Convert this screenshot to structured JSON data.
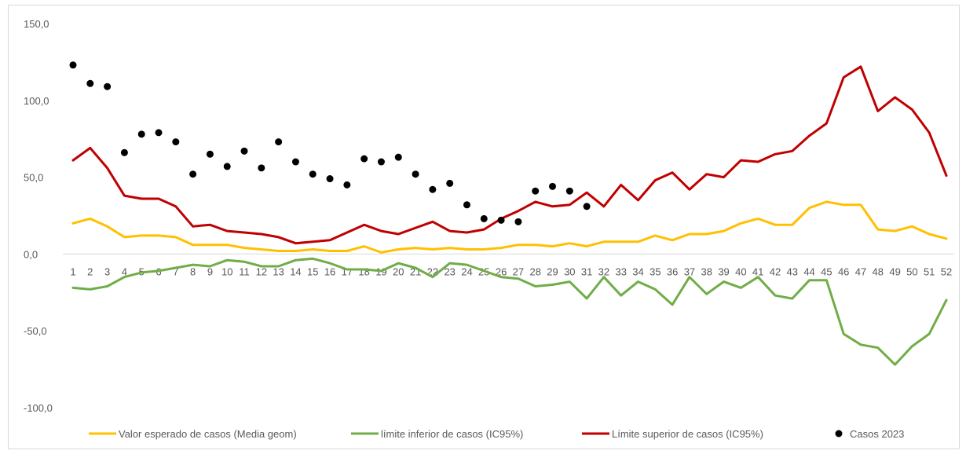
{
  "chart_data": {
    "type": "line",
    "title": "",
    "xlabel": "",
    "ylabel": "",
    "ylim": [
      -100,
      150
    ],
    "yticks": [
      "-100,0",
      "-50,0",
      "0,0",
      "50,0",
      "100,0",
      "150,0"
    ],
    "ytick_values": [
      -100,
      -50,
      0,
      50,
      100,
      150
    ],
    "categories": [
      "1",
      "2",
      "3",
      "4",
      "5",
      "6",
      "7",
      "8",
      "9",
      "10",
      "11",
      "12",
      "13",
      "14",
      "15",
      "16",
      "17",
      "18",
      "19",
      "20",
      "21",
      "22",
      "23",
      "24",
      "25",
      "26",
      "27",
      "28",
      "29",
      "30",
      "31",
      "32",
      "33",
      "34",
      "35",
      "36",
      "37",
      "38",
      "39",
      "40",
      "41",
      "42",
      "43",
      "44",
      "45",
      "46",
      "47",
      "48",
      "49",
      "50",
      "51",
      "52"
    ],
    "grid": false,
    "legend_position": "bottom",
    "series": [
      {
        "name": "Valor esperado de casos (Media geom)",
        "kind": "line",
        "color": "#FFC000",
        "values": [
          20,
          23,
          18,
          11,
          12,
          12,
          11,
          6,
          6,
          6,
          4,
          3,
          2,
          2,
          3,
          2,
          2,
          5,
          1,
          3,
          4,
          3,
          4,
          3,
          3,
          4,
          6,
          6,
          5,
          7,
          5,
          8,
          8,
          8,
          12,
          9,
          13,
          13,
          15,
          20,
          23,
          19,
          19,
          30,
          34,
          32,
          32,
          16,
          15,
          18,
          13,
          10
        ]
      },
      {
        "name": "límite inferior de casos (IC95%)",
        "kind": "line",
        "color": "#70AD47",
        "values": [
          -22,
          -23,
          -21,
          -15,
          -12,
          -11,
          -9,
          -7,
          -8,
          -4,
          -5,
          -8,
          -8,
          -4,
          -3,
          -6,
          -10,
          -10,
          -11,
          -6,
          -9,
          -15,
          -6,
          -7,
          -11,
          -15,
          -16,
          -21,
          -20,
          -18,
          -29,
          -15,
          -27,
          -18,
          -23,
          -33,
          -15,
          -26,
          -18,
          -22,
          -15,
          -27,
          -29,
          -17,
          -17,
          -52,
          -59,
          -61,
          -72,
          -60,
          -52,
          -30
        ]
      },
      {
        "name": "Límite superior de casos (IC95%)",
        "kind": "line",
        "color": "#C00000",
        "values": [
          61,
          69,
          56,
          38,
          36,
          36,
          31,
          18,
          19,
          15,
          14,
          13,
          11,
          7,
          8,
          9,
          14,
          19,
          15,
          13,
          17,
          21,
          15,
          14,
          16,
          23,
          28,
          34,
          31,
          32,
          40,
          31,
          45,
          35,
          48,
          53,
          42,
          52,
          50,
          61,
          60,
          65,
          67,
          77,
          85,
          115,
          122,
          93,
          102,
          94,
          79,
          51
        ]
      },
      {
        "name": "Casos 2023",
        "kind": "scatter",
        "color": "#000000",
        "values": [
          123,
          111,
          109,
          66,
          78,
          79,
          73,
          52,
          65,
          57,
          67,
          56,
          73,
          60,
          52,
          49,
          45,
          62,
          60,
          63,
          52,
          42,
          46,
          32,
          23,
          22,
          21,
          41,
          44,
          41,
          31,
          null,
          null,
          null,
          null,
          null,
          null,
          null,
          null,
          null,
          null,
          null,
          null,
          null,
          null,
          null,
          null,
          null,
          null,
          null,
          null,
          null
        ]
      }
    ]
  }
}
